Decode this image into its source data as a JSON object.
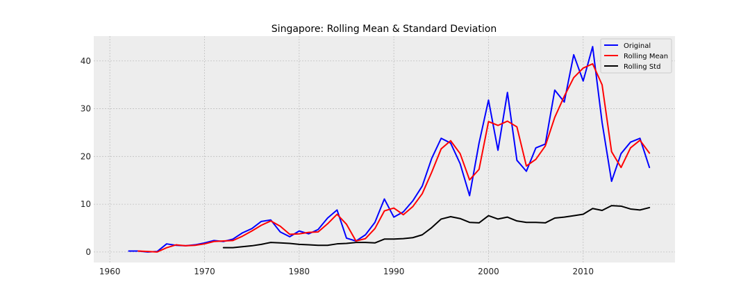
{
  "chart_data": {
    "type": "line",
    "title": "Singapore: Rolling Mean & Standard Deviation",
    "xlabel": "",
    "ylabel": "",
    "xlim": [
      1958.3,
      2019.7
    ],
    "ylim": [
      -2.2,
      45.2
    ],
    "x_ticks": [
      1960,
      1970,
      1980,
      1990,
      2000,
      2010
    ],
    "y_ticks": [
      0,
      10,
      20,
      30,
      40
    ],
    "grid": true,
    "legend_position": "top-right",
    "background": "#ededed",
    "series": [
      {
        "name": "Original",
        "color": "#0000ff",
        "x": [
          1962,
          1963,
          1964,
          1965,
          1966,
          1967,
          1968,
          1969,
          1970,
          1971,
          1972,
          1973,
          1974,
          1975,
          1976,
          1977,
          1978,
          1979,
          1980,
          1981,
          1982,
          1983,
          1984,
          1985,
          1986,
          1987,
          1988,
          1989,
          1990,
          1991,
          1992,
          1993,
          1994,
          1995,
          1996,
          1997,
          1998,
          1999,
          2000,
          2001,
          2002,
          2003,
          2004,
          2005,
          2006,
          2007,
          2008,
          2009,
          2010,
          2011,
          2012,
          2013,
          2014,
          2015,
          2016,
          2017
        ],
        "values": [
          0.2,
          0.2,
          0.0,
          0.1,
          1.7,
          1.4,
          1.3,
          1.5,
          1.9,
          2.4,
          2.2,
          2.7,
          4.0,
          4.9,
          6.4,
          6.7,
          4.2,
          3.2,
          4.4,
          3.8,
          4.7,
          7.1,
          8.8,
          2.9,
          2.3,
          3.6,
          6.2,
          11.1,
          7.3,
          8.4,
          10.7,
          13.8,
          19.6,
          23.8,
          22.8,
          18.5,
          11.8,
          22.8,
          31.8,
          21.3,
          33.4,
          19.2,
          16.9,
          21.8,
          22.6,
          33.9,
          31.4,
          41.3,
          35.8,
          43.0,
          27.1,
          14.8,
          20.6,
          23.0,
          23.8,
          17.7
        ]
      },
      {
        "name": "Rolling Mean",
        "color": "#ff0000",
        "x": [
          1963,
          1964,
          1965,
          1966,
          1967,
          1968,
          1969,
          1970,
          1971,
          1972,
          1973,
          1974,
          1975,
          1976,
          1977,
          1978,
          1979,
          1980,
          1981,
          1982,
          1983,
          1984,
          1985,
          1986,
          1987,
          1988,
          1989,
          1990,
          1991,
          1992,
          1993,
          1994,
          1995,
          1996,
          1997,
          1998,
          1999,
          2000,
          2001,
          2002,
          2003,
          2004,
          2005,
          2006,
          2007,
          2008,
          2009,
          2010,
          2011,
          2012,
          2013,
          2014,
          2015,
          2016,
          2017
        ],
        "values": [
          0.2,
          0.1,
          0.0,
          0.9,
          1.5,
          1.3,
          1.4,
          1.7,
          2.2,
          2.3,
          2.4,
          3.3,
          4.4,
          5.6,
          6.5,
          5.4,
          3.7,
          3.8,
          4.1,
          4.2,
          5.9,
          7.9,
          5.8,
          2.3,
          2.8,
          4.9,
          8.6,
          9.2,
          7.8,
          9.5,
          12.2,
          16.7,
          21.6,
          23.3,
          20.6,
          15.1,
          17.3,
          27.3,
          26.5,
          27.4,
          26.2,
          18.0,
          19.4,
          22.2,
          28.2,
          32.6,
          36.5,
          38.5,
          39.4,
          35.0,
          21.0,
          17.7,
          21.8,
          23.4,
          20.7
        ]
      },
      {
        "name": "Rolling Std",
        "color": "#000000",
        "x": [
          1972,
          1973,
          1974,
          1975,
          1976,
          1977,
          1978,
          1979,
          1980,
          1981,
          1982,
          1983,
          1984,
          1985,
          1986,
          1987,
          1988,
          1989,
          1990,
          1991,
          1992,
          1993,
          1994,
          1995,
          1996,
          1997,
          1998,
          1999,
          2000,
          2001,
          2002,
          2003,
          2004,
          2005,
          2006,
          2007,
          2008,
          2009,
          2010,
          2011,
          2012,
          2013,
          2014,
          2015,
          2016,
          2017
        ],
        "values": [
          0.9,
          0.9,
          1.1,
          1.3,
          1.6,
          2.0,
          1.9,
          1.8,
          1.6,
          1.5,
          1.4,
          1.4,
          1.7,
          1.8,
          2.0,
          2.0,
          1.9,
          2.7,
          2.7,
          2.8,
          3.0,
          3.6,
          5.1,
          6.9,
          7.4,
          7.0,
          6.2,
          6.1,
          7.6,
          6.9,
          7.3,
          6.5,
          6.2,
          6.2,
          6.1,
          7.1,
          7.3,
          7.6,
          7.9,
          9.1,
          8.7,
          9.7,
          9.6,
          9.0,
          8.8,
          9.3
        ]
      }
    ]
  }
}
